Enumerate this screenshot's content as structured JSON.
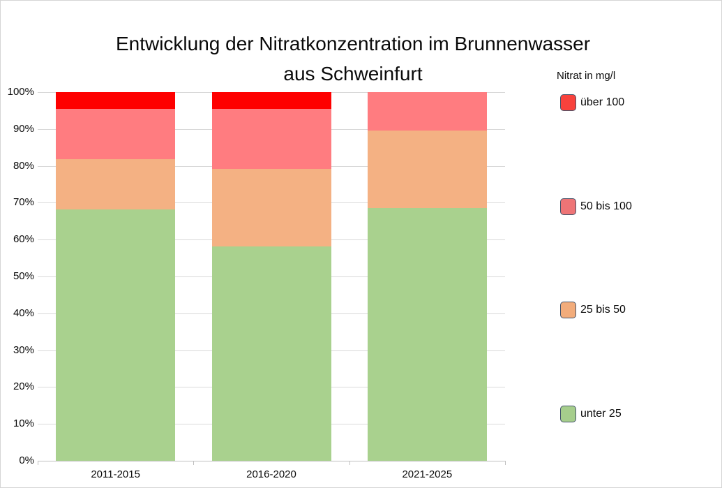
{
  "window": {
    "background": "#FFFFFF",
    "border_color": "#D5D5D5"
  },
  "chart_data": {
    "type": "bar",
    "variant": "100%-stacked-column",
    "title": "Entwicklung der Nitratkonzentration im Brunnenwasser aus Schweinfurt",
    "title_line1": "Entwicklung der Nitratkonzentration im Brunnenwasser",
    "title_line2": "aus Schweinfurt",
    "categories": [
      "2011-2015",
      "2016-2020",
      "2021-2025"
    ],
    "series": [
      {
        "name": "unter 25",
        "color": "#A9D18E",
        "values": [
          68.2,
          58.1,
          68.5
        ]
      },
      {
        "name": "25 bis 50",
        "color": "#F4B183",
        "values": [
          13.7,
          21.0,
          21.0
        ]
      },
      {
        "name": "50 bis 100",
        "color": "#FF7C80",
        "values": [
          13.6,
          16.4,
          10.5
        ]
      },
      {
        "name": "über 100",
        "color": "#FE0000",
        "values": [
          4.5,
          4.5,
          0
        ]
      }
    ],
    "xlabel": "",
    "ylabel": "",
    "ylim": [
      0,
      100
    ],
    "yticks": [
      "0%",
      "10%",
      "20%",
      "30%",
      "40%",
      "50%",
      "60%",
      "70%",
      "80%",
      "90%",
      "100%"
    ],
    "grid": true,
    "gridline_color": "#D9D9D9",
    "axis_color": "#BFBFBF",
    "legend_position": "right"
  },
  "legend": {
    "title": "Nitrat in mg/l",
    "swatch_border_color": "#44546A",
    "items": [
      {
        "label": "über 100",
        "color": "#F8423C"
      },
      {
        "label": "50 bis 100",
        "color": "#EE7476"
      },
      {
        "label": "25 bis 50",
        "color": "#F2AC7B"
      },
      {
        "label": "unter 25",
        "color": "#A6CE8C"
      }
    ]
  }
}
